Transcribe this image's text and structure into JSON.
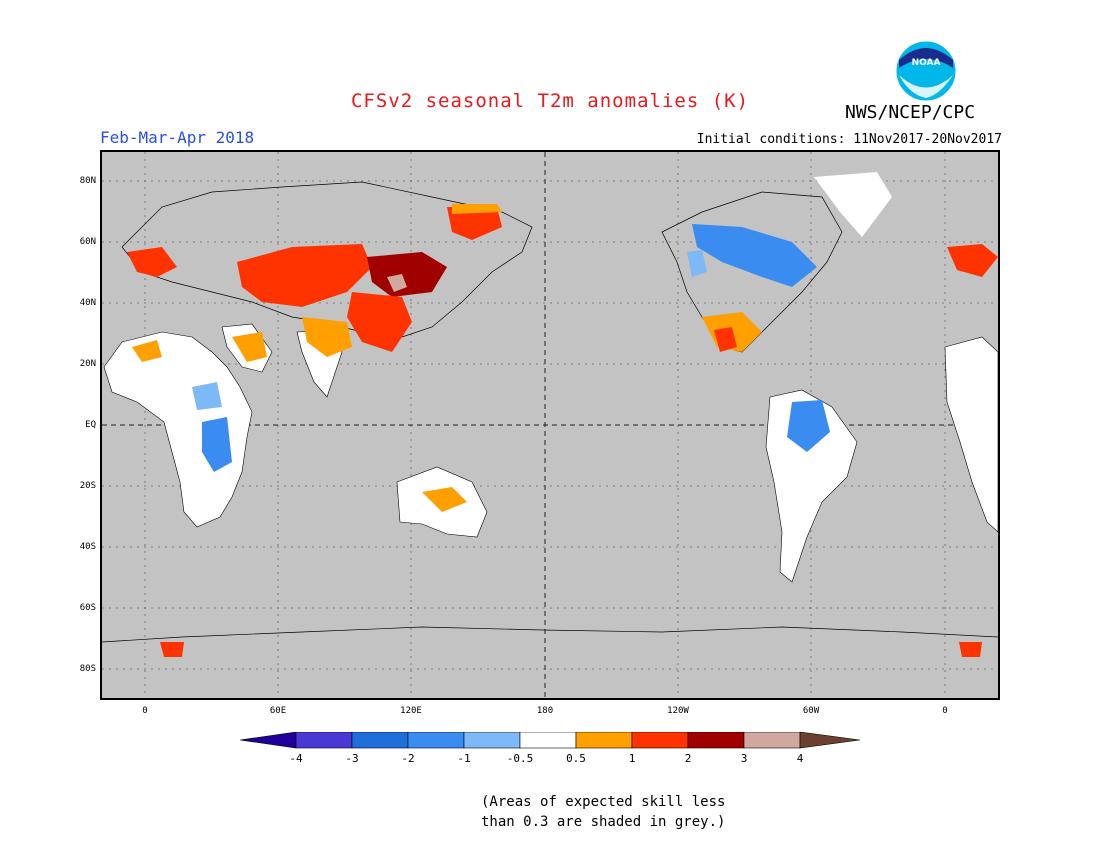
{
  "header": {
    "title": "CFSv2 seasonal T2m anomalies (K)",
    "organization": "NWS/NCEP/CPC",
    "logo_text": "NOAA",
    "period": "Feb-Mar-Apr 2018",
    "initial_conditions": "Initial conditions: 11Nov2017-20Nov2017"
  },
  "map": {
    "projection": "equirectangular",
    "lat_ticks": [
      "80N",
      "60N",
      "40N",
      "20N",
      "EQ",
      "20S",
      "40S",
      "60S",
      "80S"
    ],
    "lon_ticks": [
      "0",
      "60E",
      "120E",
      "180",
      "120W",
      "60W",
      "0"
    ],
    "background_color": "#c3c3c3"
  },
  "colorbar": {
    "labels": [
      "-4",
      "-3",
      "-2",
      "-1",
      "-0.5",
      "0.5",
      "1",
      "2",
      "3",
      "4"
    ],
    "colors": [
      "#20009a",
      "#4a38d4",
      "#1e6fdb",
      "#3a8cf0",
      "#7db8f7",
      "#ffffff",
      "#ffa000",
      "#ff3300",
      "#a00000",
      "#d0a8a0",
      "#6b4030"
    ]
  },
  "note": {
    "line1": "(Areas of expected skill less",
    "line2": "than 0.3 are shaded in grey.)"
  }
}
